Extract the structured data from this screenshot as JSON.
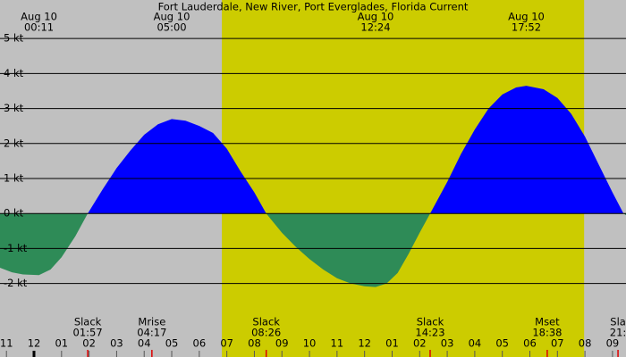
{
  "chart_data": {
    "type": "current",
    "title": "Fort Lauderdale, New River, Port Everglades, Florida Current",
    "xlim": [
      -1.234,
      21.49
    ],
    "ylim": [
      -4.1,
      6.1
    ],
    "grid": true,
    "daylight": [
      6.82,
      19.97
    ],
    "positive_color": "#0000ff",
    "negative_color": "#2e8b57",
    "yticks": [
      {
        "value": 5,
        "label": "5 kt"
      },
      {
        "value": 4,
        "label": "4 kt"
      },
      {
        "value": 3,
        "label": "3 kt"
      },
      {
        "value": 2,
        "label": "2 kt"
      },
      {
        "value": 1,
        "label": "1 kt"
      },
      {
        "value": 0,
        "label": "0 kt"
      },
      {
        "value": -1,
        "label": "-1 kt"
      },
      {
        "value": -2,
        "label": "-2 kt"
      }
    ],
    "xticks": [
      {
        "value": -1,
        "label": "11"
      },
      {
        "value": 0,
        "label": "12"
      },
      {
        "value": 1,
        "label": "01"
      },
      {
        "value": 2,
        "label": "02"
      },
      {
        "value": 3,
        "label": "03"
      },
      {
        "value": 4,
        "label": "04"
      },
      {
        "value": 5,
        "label": "05"
      },
      {
        "value": 6,
        "label": "06"
      },
      {
        "value": 7,
        "label": "07"
      },
      {
        "value": 8,
        "label": "08"
      },
      {
        "value": 9,
        "label": "09"
      },
      {
        "value": 10,
        "label": "10"
      },
      {
        "value": 11,
        "label": "11"
      },
      {
        "value": 12,
        "label": "12"
      },
      {
        "value": 13,
        "label": "01"
      },
      {
        "value": 14,
        "label": "02"
      },
      {
        "value": 15,
        "label": "03"
      },
      {
        "value": 16,
        "label": "04"
      },
      {
        "value": 17,
        "label": "05"
      },
      {
        "value": 18,
        "label": "06"
      },
      {
        "value": 19,
        "label": "07"
      },
      {
        "value": 20,
        "label": "08"
      },
      {
        "value": 21,
        "label": "09"
      }
    ],
    "peaks": [
      {
        "date": "Aug 10",
        "time": "00:11",
        "x": 0.18
      },
      {
        "date": "Aug 10",
        "time": "05:00",
        "x": 5.0
      },
      {
        "date": "Aug 10",
        "time": "12:24",
        "x": 12.4
      },
      {
        "date": "Aug 10",
        "time": "17:52",
        "x": 17.87
      }
    ],
    "events": [
      {
        "label": "Slack",
        "time": "01:57",
        "x": 1.95
      },
      {
        "label": "Mrise",
        "time": "04:17",
        "x": 4.28
      },
      {
        "label": "Slack",
        "time": "08:26",
        "x": 8.43
      },
      {
        "label": "Slack",
        "time": "14:23",
        "x": 14.38
      },
      {
        "label": "Mset",
        "time": "18:38",
        "x": 18.63
      },
      {
        "label": "Sla",
        "time": "21:",
        "x": 21.2
      }
    ],
    "x": [
      -1.234,
      -0.8,
      -0.4,
      0.18,
      0.6,
      1.0,
      1.5,
      1.95,
      2.5,
      3.0,
      3.5,
      4.0,
      4.5,
      5.0,
      5.5,
      6.0,
      6.5,
      7.0,
      7.5,
      8.0,
      8.43,
      9.0,
      9.5,
      10.0,
      10.5,
      11.0,
      11.5,
      12.0,
      12.4,
      12.8,
      13.2,
      13.6,
      14.0,
      14.38,
      15.0,
      15.5,
      16.0,
      16.5,
      17.0,
      17.5,
      17.87,
      18.5,
      19.0,
      19.5,
      20.0,
      20.5,
      21.0,
      21.4,
      21.49
    ],
    "values": [
      -1.55,
      -1.68,
      -1.74,
      -1.76,
      -1.6,
      -1.25,
      -0.65,
      0,
      0.7,
      1.3,
      1.8,
      2.25,
      2.55,
      2.7,
      2.65,
      2.5,
      2.3,
      1.85,
      1.2,
      0.6,
      0,
      -0.55,
      -0.95,
      -1.3,
      -1.6,
      -1.85,
      -2.0,
      -2.08,
      -2.1,
      -2.0,
      -1.7,
      -1.15,
      -0.55,
      0,
      0.9,
      1.7,
      2.4,
      3.0,
      3.4,
      3.6,
      3.65,
      3.55,
      3.3,
      2.85,
      2.2,
      1.4,
      0.6,
      0,
      -0.05
    ]
  }
}
